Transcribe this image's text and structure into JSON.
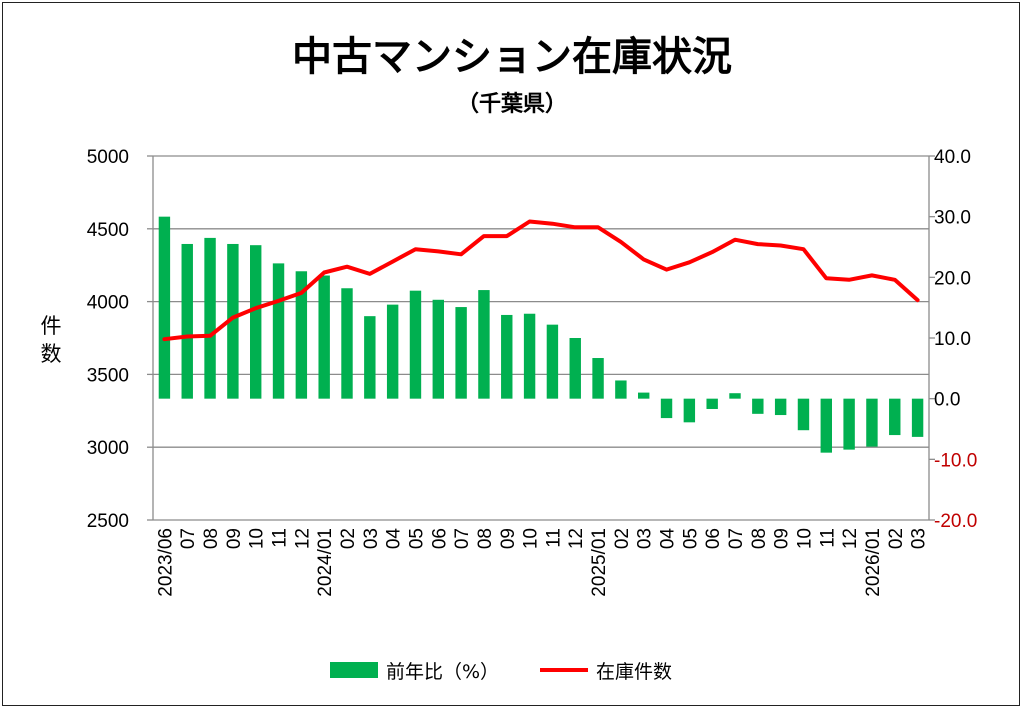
{
  "chart_data": {
    "type": "bar+line",
    "title": "中古マンション在庫状況",
    "subtitle": "（千葉県）",
    "ylabel": "件数",
    "categories": [
      "2023/06",
      "07",
      "08",
      "09",
      "10",
      "11",
      "12",
      "2024/01",
      "02",
      "03",
      "04",
      "05",
      "06",
      "07",
      "08",
      "09",
      "10",
      "11",
      "12",
      "2025/01",
      "02",
      "03",
      "04",
      "05",
      "06",
      "07",
      "08",
      "09",
      "10",
      "11",
      "12",
      "2026/01",
      "02",
      "03"
    ],
    "series": [
      {
        "name": "前年比（%）",
        "axis": "right",
        "color": "#00B050",
        "values": [
          30.0,
          25.5,
          26.5,
          25.5,
          25.3,
          22.3,
          21.0,
          20.3,
          18.2,
          13.6,
          15.5,
          17.8,
          16.3,
          15.1,
          17.9,
          13.8,
          14.0,
          12.2,
          10.0,
          6.7,
          3.0,
          1.0,
          -3.2,
          -3.9,
          -1.7,
          0.9,
          -2.5,
          -2.7,
          -5.2,
          -8.9,
          -8.4,
          -7.9,
          -6.0,
          -6.3
        ]
      },
      {
        "name": "在庫件数",
        "axis": "left",
        "color": "#FF0000",
        "values": [
          3742,
          3760,
          3765,
          3890,
          3955,
          4005,
          4060,
          4200,
          4240,
          4190,
          4275,
          4360,
          4345,
          4325,
          4450,
          4450,
          4550,
          4535,
          4510,
          4510,
          4410,
          4290,
          4220,
          4270,
          4340,
          4425,
          4395,
          4385,
          4360,
          4160,
          4150,
          4180,
          4150,
          4010
        ]
      }
    ],
    "left_axis": {
      "ylim": [
        2500,
        5000
      ],
      "ticks": [
        "2500",
        "3000",
        "3500",
        "4000",
        "4500",
        "5000"
      ]
    },
    "right_axis": {
      "ylim": [
        -20,
        40
      ],
      "ticks": [
        "-20.0",
        "-10.0",
        "0.0",
        "10.0",
        "20.0",
        "30.0",
        "40.0"
      ]
    },
    "right_axis_negative_color": "#C00000",
    "grid": true,
    "legend_position": "bottom"
  }
}
